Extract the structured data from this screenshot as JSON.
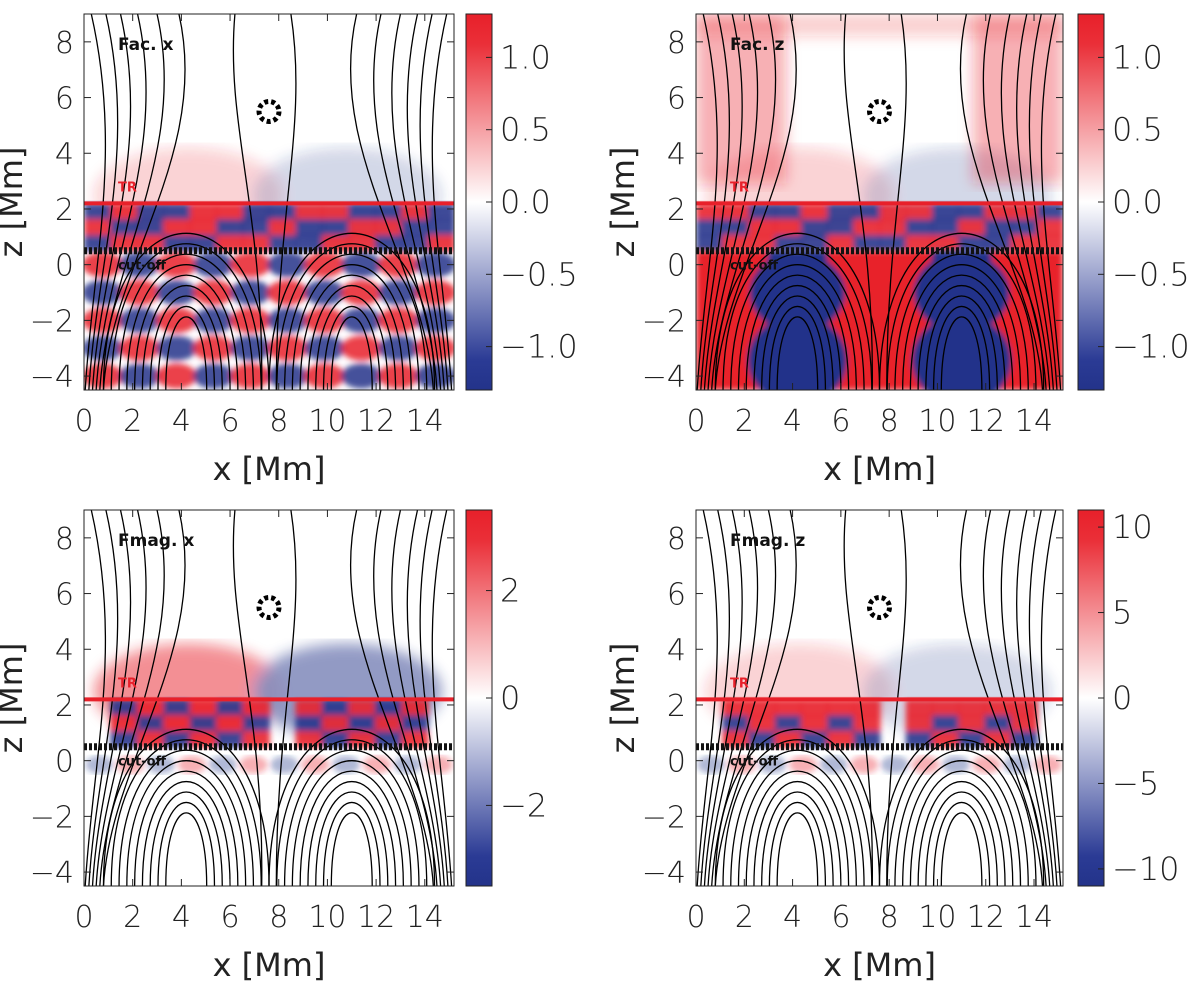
{
  "chart_data": [
    {
      "type": "heatmap",
      "panel_label": "Fac. x",
      "xlabel": "x  [Mm]",
      "ylabel": "z  [Mm]",
      "xlim": [
        0,
        15.2
      ],
      "ylim": [
        -4.5,
        9
      ],
      "x_ticks": [
        "0",
        "2",
        "4",
        "6",
        "8",
        "10",
        "12",
        "14"
      ],
      "y_ticks": [
        "8",
        "6",
        "4",
        "2",
        "0",
        "−2",
        "−4"
      ],
      "colorbar": {
        "range": [
          -1.3,
          1.3
        ],
        "ticks": [
          "1.0",
          "0.5",
          "0.0",
          "−0.5",
          "−1.0"
        ],
        "tick_values": [
          1.0,
          0.5,
          0.0,
          -0.5,
          -1.0
        ]
      },
      "annotations": {
        "tr_label": "TR",
        "tr_height": 2.2,
        "cutoff_label": "cut-off",
        "cutoff_height": 0.5
      },
      "pattern": "acoustic",
      "fill_mode": "balanced"
    },
    {
      "type": "heatmap",
      "panel_label": "Fac. z",
      "xlabel": "x  [Mm]",
      "ylabel": "z  [Mm]",
      "xlim": [
        0,
        15.2
      ],
      "ylim": [
        -4.5,
        9
      ],
      "x_ticks": [
        "0",
        "2",
        "4",
        "6",
        "8",
        "10",
        "12",
        "14"
      ],
      "y_ticks": [
        "8",
        "6",
        "4",
        "2",
        "0",
        "−2",
        "−4"
      ],
      "colorbar": {
        "range": [
          -1.3,
          1.3
        ],
        "ticks": [
          "1.0",
          "0.5",
          "0.0",
          "−0.5",
          "−1.0"
        ],
        "tick_values": [
          1.0,
          0.5,
          0.0,
          -0.5,
          -1.0
        ]
      },
      "annotations": {
        "tr_label": "TR",
        "tr_height": 2.2,
        "cutoff_label": "cut-off",
        "cutoff_height": 0.5
      },
      "pattern": "acoustic-z",
      "fill_mode": "saturated"
    },
    {
      "type": "heatmap",
      "panel_label": "Fmag. x",
      "xlabel": "x  [Mm]",
      "ylabel": "z  [Mm]",
      "xlim": [
        0,
        15.2
      ],
      "ylim": [
        -4.5,
        9
      ],
      "x_ticks": [
        "0",
        "2",
        "4",
        "6",
        "8",
        "10",
        "12",
        "14"
      ],
      "y_ticks": [
        "8",
        "6",
        "4",
        "2",
        "0",
        "−2",
        "−4"
      ],
      "colorbar": {
        "range": [
          -3.5,
          3.5
        ],
        "ticks": [
          "2",
          "0",
          "−2"
        ],
        "tick_values": [
          2,
          0,
          -2
        ]
      },
      "annotations": {
        "tr_label": "TR",
        "tr_height": 2.2,
        "cutoff_label": "cut-off",
        "cutoff_height": 0.5
      },
      "pattern": "magnetic-x",
      "fill_mode": "band"
    },
    {
      "type": "heatmap",
      "panel_label": "Fmag. z",
      "xlabel": "x  [Mm]",
      "ylabel": "z  [Mm]",
      "xlim": [
        0,
        15.2
      ],
      "ylim": [
        -4.5,
        9
      ],
      "x_ticks": [
        "0",
        "2",
        "4",
        "6",
        "8",
        "10",
        "12",
        "14"
      ],
      "y_ticks": [
        "8",
        "6",
        "4",
        "2",
        "0",
        "−2",
        "−4"
      ],
      "colorbar": {
        "range": [
          -11,
          11
        ],
        "ticks": [
          "10",
          "5",
          "0",
          "−5",
          "−10"
        ],
        "tick_values": [
          10,
          5,
          0,
          -5,
          -10
        ]
      },
      "annotations": {
        "tr_label": "TR",
        "tr_height": 2.2,
        "cutoff_label": "cut-off",
        "cutoff_height": 0.5
      },
      "pattern": "magnetic-z",
      "fill_mode": "band"
    }
  ],
  "colors": {
    "positive": "#e8202a",
    "negative": "#23338a",
    "zero": "#ffffff",
    "tr_line": "#e8202a",
    "cutoff_line": "#111111",
    "field_lines": "#000000"
  }
}
